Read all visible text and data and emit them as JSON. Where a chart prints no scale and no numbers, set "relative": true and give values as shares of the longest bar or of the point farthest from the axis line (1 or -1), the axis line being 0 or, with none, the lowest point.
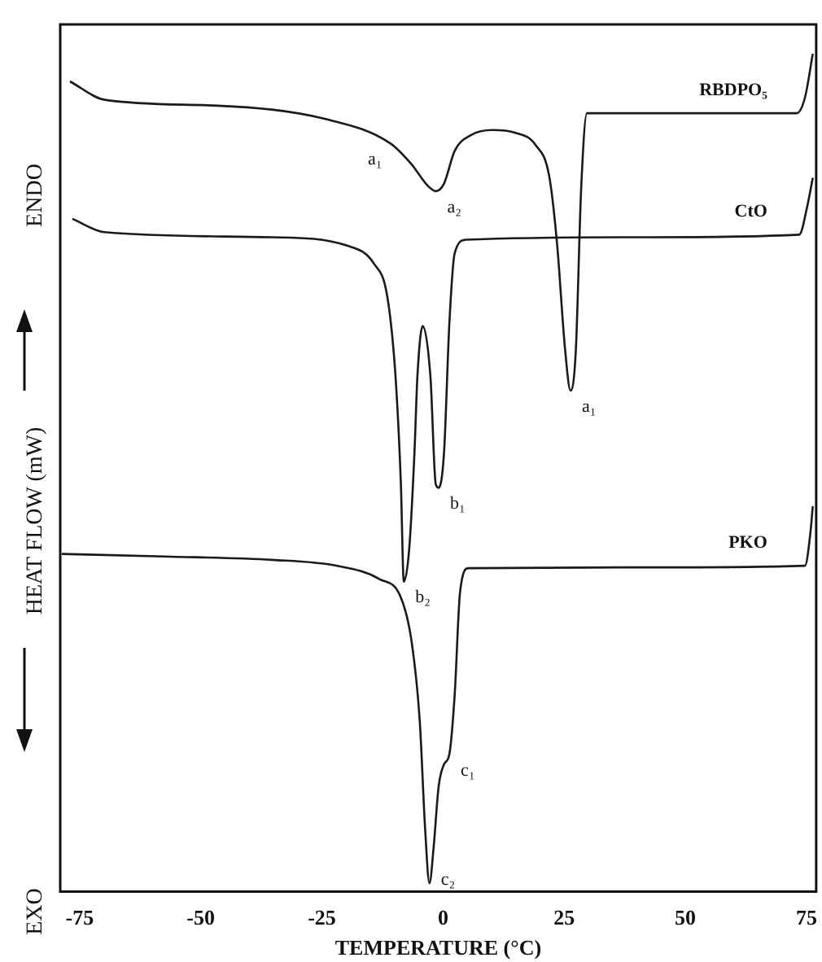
{
  "chart_data": {
    "type": "line",
    "relative": true,
    "xlabel": "TEMPERATURE (°C)",
    "ylabel": "HEAT FLOW (mW)",
    "xlim": [
      -79,
      77
    ],
    "xticks": [
      -75,
      -50,
      -25,
      0,
      25,
      50,
      75
    ],
    "grid": false,
    "legend": false,
    "marker": "none",
    "line_style": "solid",
    "series": [
      {
        "name": "RBDPO₅",
        "color": "#1a1a1a",
        "x": [
          -77.0,
          -69.8,
          -46.5,
          -24.2,
          -10.9,
          -6.5,
          -3.1,
          -1.5,
          0.2,
          2.4,
          5.8,
          10.2,
          14.7,
          19.1,
          21.9,
          23.5,
          25.2,
          26.3,
          27.4,
          28.5,
          29.7,
          42.4,
          73.0,
          74.7,
          76.3
        ],
        "values": [
          0.967,
          0.945,
          0.938,
          0.922,
          0.893,
          0.868,
          0.842,
          0.836,
          0.845,
          0.884,
          0.903,
          0.909,
          0.906,
          0.891,
          0.854,
          0.775,
          0.646,
          0.598,
          0.646,
          0.839,
          0.929,
          0.929,
          0.929,
          0.948,
          1.0
        ]
      },
      {
        "name": "CtO",
        "color": "#1a1a1a",
        "x": [
          -76.5,
          -69.8,
          -35.3,
          -19.8,
          -14.2,
          -11.5,
          -9.8,
          -8.7,
          -8.1,
          -7.0,
          -5.9,
          -5.3,
          -4.2,
          -2.6,
          -1.5,
          -0.9,
          0.2,
          1.3,
          2.4,
          4.7,
          42.4,
          73.5,
          75.2,
          76.3
        ],
        "values": [
          0.803,
          0.787,
          0.781,
          0.771,
          0.749,
          0.71,
          0.614,
          0.486,
          0.37,
          0.408,
          0.524,
          0.614,
          0.675,
          0.614,
          0.486,
          0.482,
          0.524,
          0.678,
          0.762,
          0.778,
          0.781,
          0.784,
          0.819,
          0.852
        ]
      },
      {
        "name": "PKO",
        "color": "#1a1a1a",
        "x": [
          -78.7,
          -57.6,
          -35.3,
          -22.0,
          -13.1,
          -8.7,
          -6.5,
          -4.8,
          -3.7,
          -2.8,
          -2.0,
          -0.9,
          0.2,
          1.3,
          2.4,
          3.5,
          5.2,
          42.4,
          74.7,
          75.8,
          76.3
        ],
        "values": [
          0.403,
          0.4,
          0.396,
          0.389,
          0.373,
          0.351,
          0.299,
          0.203,
          0.075,
          0.01,
          0.049,
          0.126,
          0.152,
          0.164,
          0.235,
          0.357,
          0.386,
          0.387,
          0.389,
          0.428,
          0.46
        ]
      }
    ],
    "annotations": [
      {
        "text": "a₁",
        "x": -10.9,
        "y": 0.893
      },
      {
        "text": "a₂",
        "x": -1.5,
        "y": 0.836
      },
      {
        "text": "a₁",
        "x": 26.3,
        "y": 0.598
      },
      {
        "text": "b₁",
        "x": -0.9,
        "y": 0.482
      },
      {
        "text": "b₂",
        "x": -8.1,
        "y": 0.37
      },
      {
        "text": "c₁",
        "x": 1.3,
        "y": 0.164
      },
      {
        "text": "c₂",
        "x": -2.8,
        "y": 0.01
      },
      "ENDO",
      "EXO"
    ]
  }
}
